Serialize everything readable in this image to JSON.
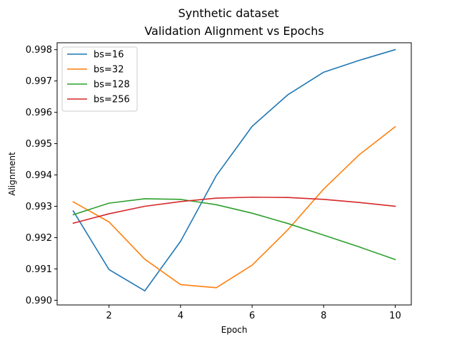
{
  "figure": {
    "suptitle": "Synthetic dataset"
  },
  "chart_data": {
    "type": "line",
    "title": "Validation Alignment vs Epochs",
    "xlabel": "Epoch",
    "ylabel": "Alignment",
    "x": [
      1,
      2,
      3,
      4,
      5,
      6,
      7,
      8,
      9,
      10
    ],
    "xlim": [
      0.55,
      10.45
    ],
    "ylim": [
      0.98985,
      0.99822
    ],
    "xticks": [
      2,
      4,
      6,
      8,
      10
    ],
    "yticks": [
      0.99,
      0.991,
      0.992,
      0.993,
      0.994,
      0.995,
      0.996,
      0.997,
      0.998
    ],
    "xtick_labels": [
      "2",
      "4",
      "6",
      "8",
      "10"
    ],
    "ytick_labels": [
      "0.990",
      "0.991",
      "0.992",
      "0.993",
      "0.994",
      "0.995",
      "0.996",
      "0.997",
      "0.998"
    ],
    "grid": false,
    "legend_position": "top-left",
    "series": [
      {
        "name": "bs=16",
        "color": "#1f77b4",
        "values": [
          0.99285,
          0.99098,
          0.9903,
          0.99188,
          0.99398,
          0.99555,
          0.99656,
          0.99728,
          0.99766,
          0.998
        ]
      },
      {
        "name": "bs=32",
        "color": "#ff7f0e",
        "values": [
          0.99314,
          0.9925,
          0.99131,
          0.9905,
          0.9904,
          0.99112,
          0.99225,
          0.99355,
          0.99465,
          0.99554
        ]
      },
      {
        "name": "bs=128",
        "color": "#2ca02c",
        "values": [
          0.99273,
          0.9931,
          0.99324,
          0.99322,
          0.99305,
          0.99278,
          0.99245,
          0.99208,
          0.9917,
          0.9913
        ]
      },
      {
        "name": "bs=256",
        "color": "#d62728",
        "values": [
          0.99246,
          0.99276,
          0.993,
          0.99315,
          0.99326,
          0.99329,
          0.99328,
          0.99322,
          0.99312,
          0.993
        ]
      }
    ]
  }
}
